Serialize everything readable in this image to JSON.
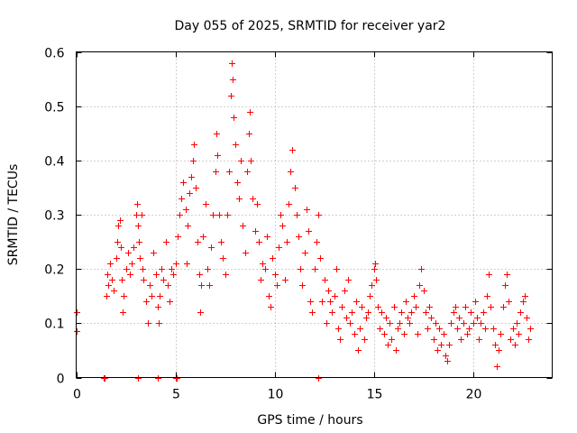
{
  "chart_data": {
    "type": "scatter",
    "title": "Day 055 of 2025, SRMTID for receiver yar2",
    "xlabel": "GPS time / hours",
    "ylabel": "SRMTID / TECUs",
    "xlim": [
      0,
      24
    ],
    "ylim": [
      0,
      0.6
    ],
    "xticks": [
      0,
      5,
      10,
      15,
      20
    ],
    "yticks": [
      0,
      0.1,
      0.2,
      0.3,
      0.4,
      0.5,
      0.6
    ],
    "xtick_labels": [
      "0",
      "5",
      "10",
      "15",
      "20"
    ],
    "ytick_labels": [
      "0",
      "0.1",
      "0.2",
      "0.3",
      "0.4",
      "0.5",
      "0.6"
    ],
    "grid": true,
    "marker": "plus",
    "color": "#ff0000",
    "series": [
      {
        "name": "SRMTID",
        "points": [
          [
            0.0,
            0.12
          ],
          [
            0.0,
            0.085
          ],
          [
            1.4,
            0.0
          ],
          [
            1.45,
            0.0
          ],
          [
            3.1,
            0.0
          ],
          [
            4.1,
            0.0
          ],
          [
            5.0,
            0.0
          ],
          [
            5.05,
            0.0
          ],
          [
            12.2,
            0.0
          ],
          [
            1.5,
            0.15
          ],
          [
            1.55,
            0.19
          ],
          [
            1.6,
            0.17
          ],
          [
            1.7,
            0.21
          ],
          [
            1.8,
            0.18
          ],
          [
            1.9,
            0.16
          ],
          [
            2.0,
            0.22
          ],
          [
            2.05,
            0.25
          ],
          [
            2.1,
            0.28
          ],
          [
            2.2,
            0.29
          ],
          [
            2.25,
            0.24
          ],
          [
            2.3,
            0.18
          ],
          [
            2.35,
            0.12
          ],
          [
            2.4,
            0.15
          ],
          [
            2.5,
            0.2
          ],
          [
            2.6,
            0.23
          ],
          [
            2.7,
            0.19
          ],
          [
            2.8,
            0.21
          ],
          [
            2.9,
            0.24
          ],
          [
            3.0,
            0.3
          ],
          [
            3.05,
            0.32
          ],
          [
            3.1,
            0.28
          ],
          [
            3.15,
            0.25
          ],
          [
            3.2,
            0.22
          ],
          [
            3.3,
            0.3
          ],
          [
            3.35,
            0.2
          ],
          [
            3.4,
            0.18
          ],
          [
            3.5,
            0.14
          ],
          [
            3.6,
            0.1
          ],
          [
            3.7,
            0.17
          ],
          [
            3.8,
            0.15
          ],
          [
            3.9,
            0.23
          ],
          [
            4.0,
            0.19
          ],
          [
            4.1,
            0.13
          ],
          [
            4.15,
            0.1
          ],
          [
            4.2,
            0.15
          ],
          [
            4.3,
            0.2
          ],
          [
            4.4,
            0.18
          ],
          [
            4.5,
            0.25
          ],
          [
            4.6,
            0.17
          ],
          [
            4.7,
            0.14
          ],
          [
            4.8,
            0.2
          ],
          [
            4.9,
            0.19
          ],
          [
            5.0,
            0.21
          ],
          [
            5.1,
            0.26
          ],
          [
            5.2,
            0.3
          ],
          [
            5.3,
            0.33
          ],
          [
            5.4,
            0.36
          ],
          [
            5.5,
            0.31
          ],
          [
            5.55,
            0.21
          ],
          [
            5.6,
            0.28
          ],
          [
            5.7,
            0.34
          ],
          [
            5.8,
            0.37
          ],
          [
            5.9,
            0.4
          ],
          [
            5.95,
            0.43
          ],
          [
            6.0,
            0.35
          ],
          [
            6.1,
            0.25
          ],
          [
            6.2,
            0.19
          ],
          [
            6.25,
            0.12
          ],
          [
            6.3,
            0.17
          ],
          [
            6.4,
            0.26
          ],
          [
            6.5,
            0.32
          ],
          [
            6.6,
            0.2
          ],
          [
            6.7,
            0.17
          ],
          [
            6.8,
            0.24
          ],
          [
            6.9,
            0.3
          ],
          [
            7.0,
            0.38
          ],
          [
            7.05,
            0.45
          ],
          [
            7.1,
            0.41
          ],
          [
            7.2,
            0.3
          ],
          [
            7.3,
            0.25
          ],
          [
            7.4,
            0.22
          ],
          [
            7.5,
            0.19
          ],
          [
            7.6,
            0.3
          ],
          [
            7.7,
            0.38
          ],
          [
            7.8,
            0.52
          ],
          [
            7.85,
            0.58
          ],
          [
            7.9,
            0.55
          ],
          [
            7.95,
            0.48
          ],
          [
            8.0,
            0.43
          ],
          [
            8.1,
            0.36
          ],
          [
            8.2,
            0.33
          ],
          [
            8.3,
            0.4
          ],
          [
            8.4,
            0.28
          ],
          [
            8.5,
            0.23
          ],
          [
            8.6,
            0.38
          ],
          [
            8.7,
            0.45
          ],
          [
            8.75,
            0.49
          ],
          [
            8.8,
            0.4
          ],
          [
            8.9,
            0.33
          ],
          [
            9.0,
            0.27
          ],
          [
            9.1,
            0.32
          ],
          [
            9.2,
            0.25
          ],
          [
            9.3,
            0.18
          ],
          [
            9.4,
            0.21
          ],
          [
            9.5,
            0.2
          ],
          [
            9.6,
            0.26
          ],
          [
            9.7,
            0.15
          ],
          [
            9.8,
            0.13
          ],
          [
            9.9,
            0.22
          ],
          [
            10.0,
            0.19
          ],
          [
            10.1,
            0.17
          ],
          [
            10.2,
            0.24
          ],
          [
            10.3,
            0.3
          ],
          [
            10.4,
            0.28
          ],
          [
            10.5,
            0.18
          ],
          [
            10.6,
            0.25
          ],
          [
            10.7,
            0.32
          ],
          [
            10.8,
            0.38
          ],
          [
            10.9,
            0.42
          ],
          [
            11.0,
            0.35
          ],
          [
            11.1,
            0.3
          ],
          [
            11.2,
            0.26
          ],
          [
            11.3,
            0.2
          ],
          [
            11.4,
            0.17
          ],
          [
            11.5,
            0.23
          ],
          [
            11.6,
            0.31
          ],
          [
            11.7,
            0.27
          ],
          [
            11.8,
            0.14
          ],
          [
            11.9,
            0.12
          ],
          [
            12.0,
            0.2
          ],
          [
            12.1,
            0.25
          ],
          [
            12.2,
            0.3
          ],
          [
            12.3,
            0.22
          ],
          [
            12.4,
            0.14
          ],
          [
            12.5,
            0.18
          ],
          [
            12.6,
            0.1
          ],
          [
            12.7,
            0.16
          ],
          [
            12.8,
            0.14
          ],
          [
            12.9,
            0.12
          ],
          [
            13.0,
            0.15
          ],
          [
            13.1,
            0.2
          ],
          [
            13.2,
            0.09
          ],
          [
            13.3,
            0.07
          ],
          [
            13.4,
            0.13
          ],
          [
            13.5,
            0.16
          ],
          [
            13.6,
            0.11
          ],
          [
            13.7,
            0.18
          ],
          [
            13.8,
            0.1
          ],
          [
            13.9,
            0.12
          ],
          [
            14.0,
            0.08
          ],
          [
            14.1,
            0.14
          ],
          [
            14.2,
            0.05
          ],
          [
            14.3,
            0.09
          ],
          [
            14.4,
            0.13
          ],
          [
            14.5,
            0.07
          ],
          [
            14.6,
            0.11
          ],
          [
            14.7,
            0.12
          ],
          [
            14.8,
            0.15
          ],
          [
            14.9,
            0.17
          ],
          [
            15.0,
            0.2
          ],
          [
            15.05,
            0.21
          ],
          [
            15.1,
            0.18
          ],
          [
            15.2,
            0.13
          ],
          [
            15.3,
            0.09
          ],
          [
            15.4,
            0.12
          ],
          [
            15.5,
            0.08
          ],
          [
            15.6,
            0.11
          ],
          [
            15.7,
            0.06
          ],
          [
            15.8,
            0.1
          ],
          [
            15.9,
            0.07
          ],
          [
            16.0,
            0.13
          ],
          [
            16.1,
            0.05
          ],
          [
            16.2,
            0.09
          ],
          [
            16.3,
            0.1
          ],
          [
            16.4,
            0.12
          ],
          [
            16.5,
            0.08
          ],
          [
            16.6,
            0.14
          ],
          [
            16.7,
            0.11
          ],
          [
            16.8,
            0.1
          ],
          [
            16.9,
            0.12
          ],
          [
            17.0,
            0.15
          ],
          [
            17.1,
            0.13
          ],
          [
            17.2,
            0.08
          ],
          [
            17.3,
            0.17
          ],
          [
            17.4,
            0.2
          ],
          [
            17.5,
            0.16
          ],
          [
            17.6,
            0.12
          ],
          [
            17.7,
            0.09
          ],
          [
            17.8,
            0.13
          ],
          [
            17.9,
            0.11
          ],
          [
            18.0,
            0.07
          ],
          [
            18.1,
            0.1
          ],
          [
            18.2,
            0.05
          ],
          [
            18.3,
            0.09
          ],
          [
            18.4,
            0.06
          ],
          [
            18.5,
            0.08
          ],
          [
            18.6,
            0.04
          ],
          [
            18.7,
            0.03
          ],
          [
            18.8,
            0.06
          ],
          [
            18.9,
            0.1
          ],
          [
            19.0,
            0.12
          ],
          [
            19.1,
            0.13
          ],
          [
            19.2,
            0.09
          ],
          [
            19.3,
            0.11
          ],
          [
            19.4,
            0.07
          ],
          [
            19.5,
            0.1
          ],
          [
            19.6,
            0.13
          ],
          [
            19.7,
            0.08
          ],
          [
            19.8,
            0.09
          ],
          [
            19.9,
            0.12
          ],
          [
            20.0,
            0.1
          ],
          [
            20.1,
            0.14
          ],
          [
            20.2,
            0.11
          ],
          [
            20.3,
            0.07
          ],
          [
            20.4,
            0.1
          ],
          [
            20.5,
            0.12
          ],
          [
            20.6,
            0.09
          ],
          [
            20.7,
            0.15
          ],
          [
            20.8,
            0.19
          ],
          [
            20.9,
            0.13
          ],
          [
            21.0,
            0.09
          ],
          [
            21.1,
            0.06
          ],
          [
            21.2,
            0.02
          ],
          [
            21.3,
            0.05
          ],
          [
            21.4,
            0.08
          ],
          [
            21.5,
            0.13
          ],
          [
            21.6,
            0.17
          ],
          [
            21.7,
            0.19
          ],
          [
            21.8,
            0.14
          ],
          [
            21.9,
            0.07
          ],
          [
            22.0,
            0.09
          ],
          [
            22.1,
            0.06
          ],
          [
            22.2,
            0.1
          ],
          [
            22.3,
            0.08
          ],
          [
            22.4,
            0.12
          ],
          [
            22.5,
            0.14
          ],
          [
            22.6,
            0.15
          ],
          [
            22.7,
            0.11
          ],
          [
            22.8,
            0.07
          ],
          [
            22.9,
            0.09
          ]
        ]
      }
    ]
  }
}
